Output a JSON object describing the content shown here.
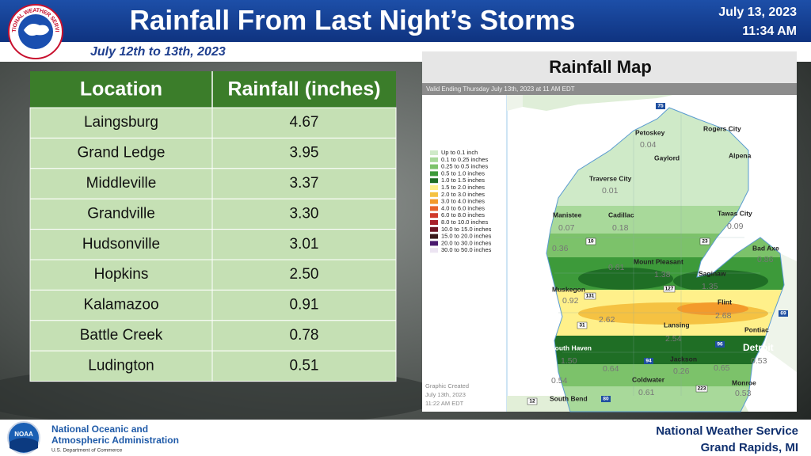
{
  "header": {
    "logo_text": "NATIONAL WEATHER SERVICE",
    "title": "Rainfall From Last Night’s Storms",
    "date": "July 13, 2023",
    "time": "11:34 AM",
    "subtitle": "July 12th to 13th, 2023"
  },
  "table": {
    "columns": [
      "Location",
      "Rainfall (inches)"
    ],
    "rows": [
      [
        "Laingsburg",
        "4.67"
      ],
      [
        "Grand Ledge",
        "3.95"
      ],
      [
        "Middleville",
        "3.37"
      ],
      [
        "Grandville",
        "3.30"
      ],
      [
        "Hudsonville",
        "3.01"
      ],
      [
        "Hopkins",
        "2.50"
      ],
      [
        "Kalamazoo",
        "0.91"
      ],
      [
        "Battle Creek",
        "0.78"
      ],
      [
        "Ludington",
        "0.51"
      ]
    ]
  },
  "map": {
    "title": "Rainfall Map",
    "valid": "Valid Ending Thursday July 13th, 2023 at 11 AM EDT",
    "legend": [
      {
        "label": "Up to 0.1 inch",
        "color": "#cfeac8"
      },
      {
        "label": "0.1 to 0.25 inches",
        "color": "#a8d99a"
      },
      {
        "label": "0.25 to 0.5 inches",
        "color": "#7cc26a"
      },
      {
        "label": "0.5 to 1.0 inches",
        "color": "#3d9a3a"
      },
      {
        "label": "1.0 to 1.5 inches",
        "color": "#1f6e25"
      },
      {
        "label": "1.5 to 2.0 inches",
        "color": "#fff08a"
      },
      {
        "label": "2.0 to 3.0 inches",
        "color": "#f5c242"
      },
      {
        "label": "3.0 to 4.0 inches",
        "color": "#f39a2b"
      },
      {
        "label": "4.0 to 6.0 inches",
        "color": "#e8632a"
      },
      {
        "label": "6.0 to 8.0 inches",
        "color": "#d03a2a"
      },
      {
        "label": "8.0 to 10.0 inches",
        "color": "#a8202a"
      },
      {
        "label": "10.0 to 15.0 inches",
        "color": "#6e1422"
      },
      {
        "label": "15.0 to 20.0 inches",
        "color": "#3a1a1a"
      },
      {
        "label": "20.0 to 30.0 inches",
        "color": "#4a1a6e"
      },
      {
        "label": "30.0 to 50.0 inches",
        "color": "#ece4f2"
      }
    ],
    "created": [
      "Graphic Created",
      "July 13th, 2023",
      "11:22 AM EDT"
    ],
    "cities": [
      "Petoskey",
      "Rogers City",
      "Gaylord",
      "Alpena",
      "Traverse City",
      "Manistee",
      "Cadillac",
      "Tawas City",
      "Mount Pleasant",
      "Saginaw",
      "Bad Axe",
      "Muskegon",
      "Flint",
      "Lansing",
      "Pontiac",
      "Detroit",
      "South Haven",
      "Jackson",
      "Coldwater",
      "Monroe",
      "South Bend"
    ],
    "amounts": [
      "0.04",
      "0.01",
      "0.07",
      "0.18",
      "0.09",
      "0.36",
      "0.61",
      "1.38",
      "1.35",
      "0.86",
      "0.92",
      "2.62",
      "2.68",
      "2.54",
      "1.50",
      "0.64",
      "0.26",
      "0.65",
      "0.54",
      "0.61",
      "0.53",
      "0.53"
    ],
    "highways": [
      "75",
      "10",
      "23",
      "131",
      "127",
      "31",
      "96",
      "94",
      "69",
      "223",
      "12",
      "80"
    ]
  },
  "footer": {
    "noaa_logo": "NOAA",
    "agency": [
      "National Oceanic and",
      "Atmospheric Administration"
    ],
    "department": "U.S. Department of Commerce",
    "office": [
      "National Weather Service",
      "Grand Rapids, MI"
    ]
  }
}
